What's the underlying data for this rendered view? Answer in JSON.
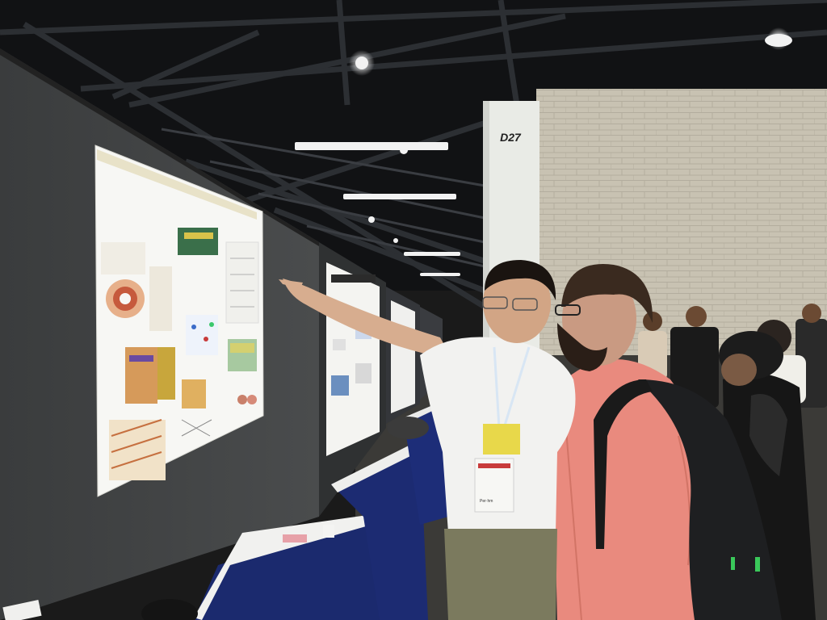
{
  "scene": {
    "pillar_label": "D27",
    "badge_text": "Per·hm"
  },
  "colors": {
    "wall": "#c9c3b4",
    "ceiling": "#111214",
    "board": "#3d3f40",
    "table_skirt": "#1b2a6e",
    "shirt_left": "#f2f2f0",
    "shirt_right": "#e98a7e",
    "lanyard_badge": "#e8d84a"
  }
}
